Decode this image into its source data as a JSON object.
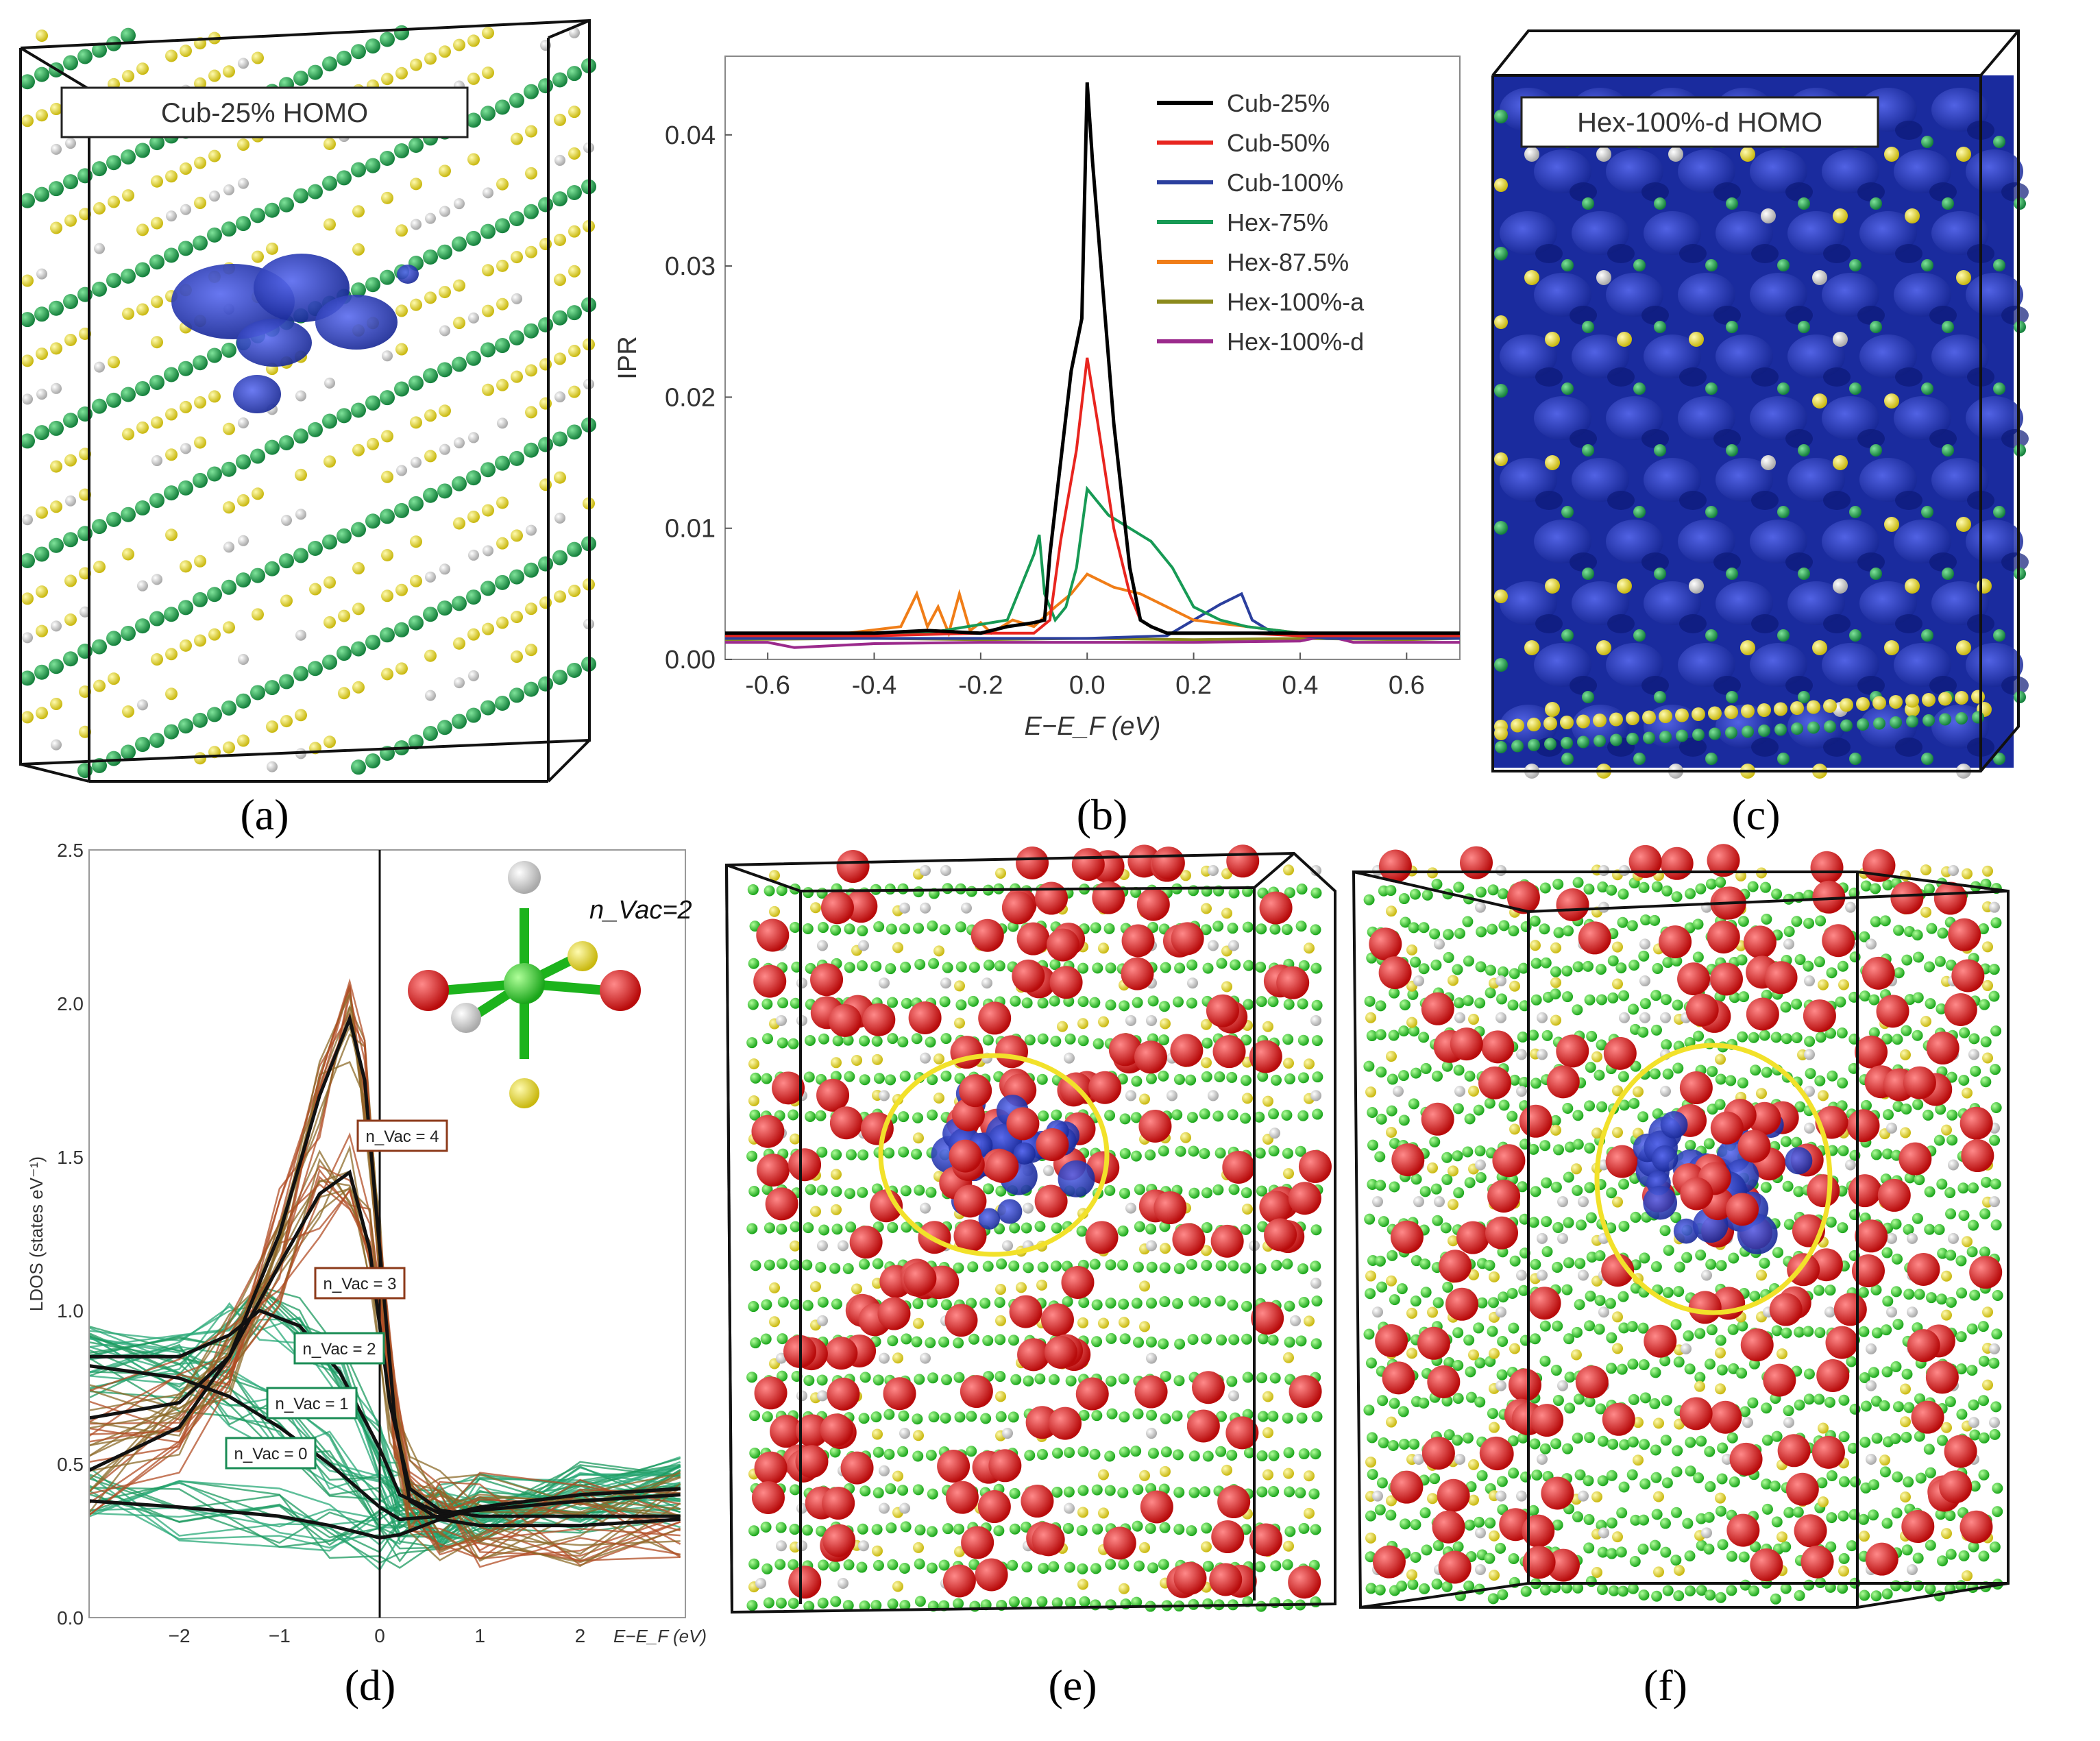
{
  "figure": {
    "panel_labels": [
      "(a)",
      "(b)",
      "(c)",
      "(d)",
      "(e)",
      "(f)"
    ]
  },
  "panel_a": {
    "title": "Cub-25% HOMO"
  },
  "panel_c": {
    "title": "Hex-100%-d HOMO"
  },
  "colors": {
    "green_atom": "#1e9a4c",
    "bright_green_atom": "#2bd22b",
    "yellow_atom": "#ece23a",
    "white_atom": "#e8e8e8",
    "red_atom": "#dd1a1a",
    "blue_density": "#1a2fae",
    "highlight_circle": "#f2e12a"
  },
  "chart_data": [
    {
      "id": "b",
      "type": "line",
      "xlabel": "E−E_F (eV)",
      "ylabel": "IPR",
      "xlim": [
        -0.68,
        0.7
      ],
      "ylim": [
        0,
        0.046
      ],
      "xticks": [
        -0.6,
        -0.4,
        -0.2,
        0.0,
        0.2,
        0.4,
        0.6
      ],
      "xtick_labels": [
        "-0.6",
        "-0.4",
        "-0.2",
        "0.0",
        "0.2",
        "0.4",
        "0.6"
      ],
      "yticks": [
        0.0,
        0.01,
        0.02,
        0.03,
        0.04
      ],
      "ytick_labels": [
        "0.00",
        "0.01",
        "0.02",
        "0.03",
        "0.04"
      ],
      "legend_position": "top-right",
      "series": [
        {
          "name": "Cub-25%",
          "color": "#000000",
          "x": [
            -0.68,
            -0.5,
            -0.4,
            -0.3,
            -0.2,
            -0.15,
            -0.1,
            -0.08,
            -0.07,
            -0.05,
            -0.03,
            -0.01,
            0.0,
            0.01,
            0.03,
            0.05,
            0.08,
            0.1,
            0.12,
            0.15,
            0.2,
            0.3,
            0.4,
            0.5,
            0.6,
            0.7
          ],
          "y": [
            0.002,
            0.002,
            0.002,
            0.0022,
            0.002,
            0.0025,
            0.0028,
            0.003,
            0.008,
            0.015,
            0.022,
            0.026,
            0.044,
            0.038,
            0.028,
            0.018,
            0.007,
            0.003,
            0.0025,
            0.002,
            0.002,
            0.002,
            0.002,
            0.002,
            0.002,
            0.002
          ]
        },
        {
          "name": "Cub-50%",
          "color": "#e8251f",
          "x": [
            -0.68,
            -0.4,
            -0.2,
            -0.1,
            -0.07,
            -0.05,
            -0.02,
            0.0,
            0.02,
            0.05,
            0.08,
            0.1,
            0.12,
            0.15,
            0.2,
            0.3,
            0.4,
            0.5,
            0.6,
            0.7
          ],
          "y": [
            0.0018,
            0.0018,
            0.002,
            0.002,
            0.003,
            0.009,
            0.016,
            0.023,
            0.018,
            0.01,
            0.005,
            0.003,
            0.0025,
            0.002,
            0.002,
            0.002,
            0.0018,
            0.0018,
            0.0018,
            0.0018
          ]
        },
        {
          "name": "Cub-100%",
          "color": "#2b3f9e",
          "x": [
            -0.68,
            -0.3,
            0.0,
            0.15,
            0.2,
            0.25,
            0.29,
            0.31,
            0.35,
            0.45,
            0.6,
            0.7
          ],
          "y": [
            0.0016,
            0.0016,
            0.0016,
            0.0018,
            0.003,
            0.0042,
            0.005,
            0.003,
            0.002,
            0.0016,
            0.0016,
            0.0016
          ]
        },
        {
          "name": "Hex-75%",
          "color": "#179a55",
          "x": [
            -0.68,
            -0.3,
            -0.15,
            -0.1,
            -0.09,
            -0.08,
            -0.06,
            -0.04,
            -0.02,
            0.0,
            0.04,
            0.08,
            0.12,
            0.16,
            0.2,
            0.25,
            0.3,
            0.4,
            0.5,
            0.6,
            0.7
          ],
          "y": [
            0.0018,
            0.002,
            0.003,
            0.008,
            0.0095,
            0.005,
            0.003,
            0.004,
            0.007,
            0.013,
            0.011,
            0.01,
            0.009,
            0.007,
            0.004,
            0.003,
            0.0025,
            0.002,
            0.0018,
            0.0018,
            0.0018
          ]
        },
        {
          "name": "Hex-87.5%",
          "color": "#f07d17",
          "x": [
            -0.68,
            -0.45,
            -0.35,
            -0.32,
            -0.3,
            -0.28,
            -0.26,
            -0.24,
            -0.22,
            -0.2,
            -0.18,
            -0.14,
            -0.1,
            -0.06,
            -0.03,
            0.0,
            0.05,
            0.1,
            0.15,
            0.2,
            0.3,
            0.4,
            0.5,
            0.6,
            0.7
          ],
          "y": [
            0.0018,
            0.002,
            0.0025,
            0.005,
            0.0025,
            0.004,
            0.002,
            0.005,
            0.0022,
            0.0028,
            0.002,
            0.003,
            0.0025,
            0.004,
            0.005,
            0.0065,
            0.0055,
            0.005,
            0.004,
            0.003,
            0.0025,
            0.002,
            0.0018,
            0.0018,
            0.0018
          ]
        },
        {
          "name": "Hex-100%-a",
          "color": "#8b8a1c",
          "x": [
            -0.68,
            -0.4,
            -0.2,
            0.0,
            0.2,
            0.4,
            0.6,
            0.7
          ],
          "y": [
            0.0015,
            0.0016,
            0.0015,
            0.0016,
            0.0015,
            0.0016,
            0.0015,
            0.0016
          ]
        },
        {
          "name": "Hex-100%-d",
          "color": "#9b2a8c",
          "x": [
            -0.68,
            -0.6,
            -0.55,
            -0.4,
            -0.2,
            0.0,
            0.2,
            0.4,
            0.45,
            0.5,
            0.6,
            0.7
          ],
          "y": [
            0.0013,
            0.0013,
            0.0009,
            0.0012,
            0.0013,
            0.0013,
            0.0013,
            0.0014,
            0.0018,
            0.0013,
            0.0013,
            0.0013
          ]
        }
      ]
    },
    {
      "id": "d",
      "type": "line",
      "xlabel": "E−E_F (eV)",
      "ylabel": "LDOS (states eV⁻¹)",
      "xlim": [
        -2.9,
        3.05
      ],
      "ylim": [
        0,
        2.5
      ],
      "xticks": [
        -2,
        -1,
        0,
        1,
        2
      ],
      "xtick_labels": [
        "−2",
        "−1",
        "0",
        "1",
        "2"
      ],
      "yticks": [
        0,
        0.5,
        1.0,
        1.5,
        2.0,
        2.5
      ],
      "ytick_labels": [
        "0.0",
        "0.5",
        "1.0",
        "1.5",
        "2.0",
        "2.5"
      ],
      "inset_label": "n_Vac=2",
      "series": [
        {
          "name": "n_Vac = 0",
          "color": "#14704a",
          "label_color": "#1a8c55",
          "x": [
            -2.9,
            -2.0,
            -1.0,
            -0.5,
            0.0,
            0.2,
            0.6,
            1.0,
            2.0,
            3.0
          ],
          "y": [
            0.38,
            0.36,
            0.33,
            0.3,
            0.26,
            0.27,
            0.32,
            0.36,
            0.4,
            0.42
          ]
        },
        {
          "name": "n_Vac = 1",
          "color": "#14704a",
          "label_color": "#1a8c55",
          "x": [
            -2.9,
            -2.0,
            -1.5,
            -1.0,
            -0.5,
            0.0,
            0.2,
            0.6,
            1.0,
            2.0,
            3.0
          ],
          "y": [
            0.82,
            0.78,
            0.72,
            0.62,
            0.5,
            0.36,
            0.32,
            0.33,
            0.36,
            0.4,
            0.42
          ]
        },
        {
          "name": "n_Vac = 2",
          "color": "#14704a",
          "label_color": "#1a8c55",
          "x": [
            -2.9,
            -2.0,
            -1.5,
            -1.2,
            -0.8,
            -0.4,
            0.0,
            0.2,
            0.6,
            1.0,
            2.0,
            3.0
          ],
          "y": [
            0.85,
            0.85,
            0.92,
            1.0,
            0.95,
            0.8,
            0.55,
            0.4,
            0.34,
            0.35,
            0.38,
            0.4
          ]
        },
        {
          "name": "n_Vac = 3",
          "color": "#6a2a12",
          "label_color": "#8c3a1a",
          "x": [
            -2.9,
            -2.0,
            -1.5,
            -1.0,
            -0.6,
            -0.3,
            -0.1,
            0.1,
            0.3,
            0.6,
            1.0,
            2.0,
            3.0
          ],
          "y": [
            0.65,
            0.7,
            0.85,
            1.15,
            1.38,
            1.45,
            1.2,
            0.7,
            0.42,
            0.35,
            0.33,
            0.33,
            0.33
          ]
        },
        {
          "name": "n_Vac = 4",
          "color": "#6a2a12",
          "label_color": "#8c3a1a",
          "x": [
            -2.9,
            -2.0,
            -1.5,
            -1.0,
            -0.6,
            -0.3,
            -0.15,
            0.0,
            0.15,
            0.3,
            0.6,
            1.0,
            2.0,
            3.0
          ],
          "y": [
            0.48,
            0.62,
            0.85,
            1.25,
            1.7,
            1.95,
            1.75,
            1.2,
            0.65,
            0.38,
            0.32,
            0.3,
            0.3,
            0.32
          ]
        }
      ]
    }
  ]
}
